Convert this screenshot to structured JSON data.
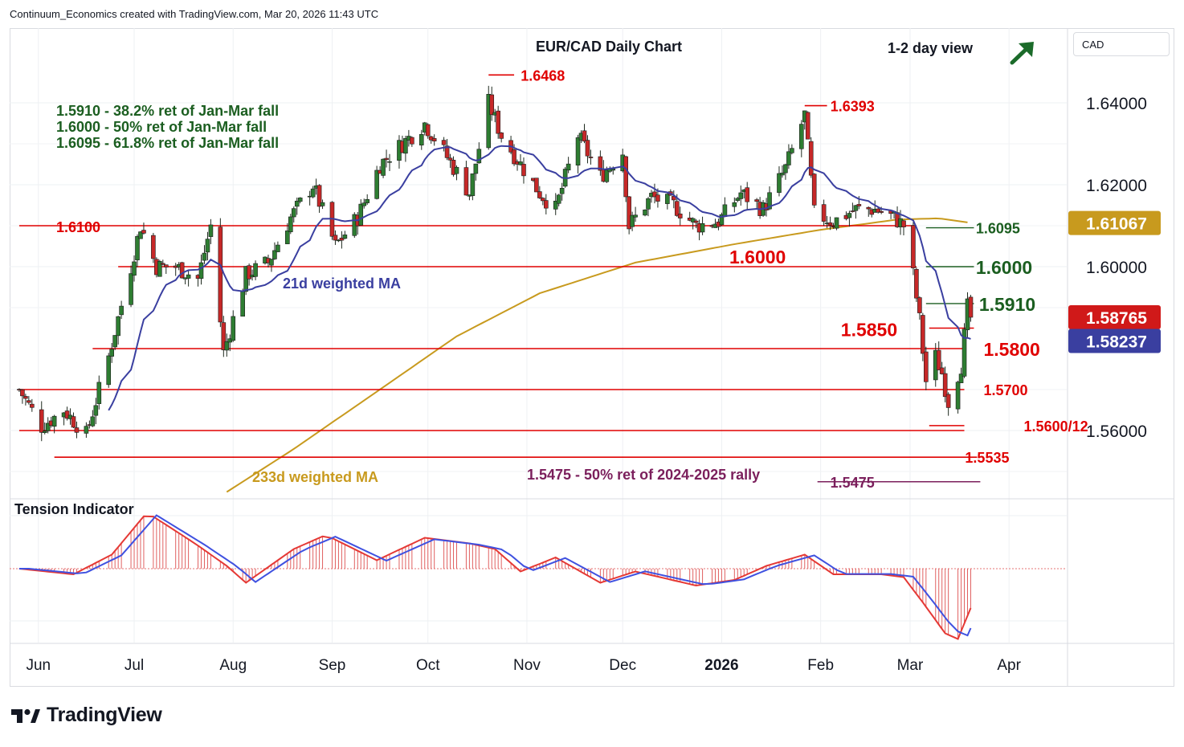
{
  "header": {
    "text": "Continuum_Economics created with TradingView.com, Mar 20, 2026 11:43 UTC"
  },
  "brand": {
    "name": "TradingView"
  },
  "currency": "CAD",
  "colors": {
    "up": "#2e7d32",
    "down": "#c62828",
    "level": "#e00000",
    "ma21": "#3a3fa0",
    "ma233": "#c89a1e",
    "green_text": "#1b5e20",
    "purple": "#7b1f5c",
    "axis_text": "#131722"
  },
  "chart_data": [
    {
      "type": "candlestick",
      "title": "EUR/CAD Daily Chart",
      "view_label": "1-2 day view",
      "view_icon": "arrow-up-right-icon",
      "ylim": [
        1.5445,
        1.6545
      ],
      "y_ticks": [
        "1.64000",
        "1.62000",
        "1.60000",
        "1.56000"
      ],
      "x_ticks": [
        "Jun",
        "Jul",
        "Aug",
        "Sep",
        "Oct",
        "Nov",
        "Dec",
        "2026",
        "Feb",
        "Mar",
        "Apr"
      ],
      "last_price": "1.58765",
      "ma21_value": "1.58237",
      "ma233_value": "1.61067",
      "ohlc_anchors": [
        [
          "2025-05-26",
          1.57
        ],
        [
          "2025-06-02",
          1.561
        ],
        [
          "2025-06-09",
          1.565
        ],
        [
          "2025-06-16",
          1.559
        ],
        [
          "2025-06-23",
          1.578
        ],
        [
          "2025-06-30",
          1.6
        ],
        [
          "2025-07-03",
          1.61
        ],
        [
          "2025-07-08",
          1.6
        ],
        [
          "2025-07-14",
          1.6
        ],
        [
          "2025-07-21",
          1.597
        ],
        [
          "2025-07-25",
          1.61
        ],
        [
          "2025-07-29",
          1.579
        ],
        [
          "2025-08-05",
          1.598
        ],
        [
          "2025-08-12",
          1.601
        ],
        [
          "2025-08-19",
          1.612
        ],
        [
          "2025-08-26",
          1.62
        ],
        [
          "2025-09-02",
          1.605
        ],
        [
          "2025-09-09",
          1.612
        ],
        [
          "2025-09-16",
          1.625
        ],
        [
          "2025-09-23",
          1.63
        ],
        [
          "2025-09-30",
          1.635
        ],
        [
          "2025-10-06",
          1.628
        ],
        [
          "2025-10-14",
          1.618
        ],
        [
          "2025-10-20",
          1.64
        ],
        [
          "2025-10-24",
          1.632
        ],
        [
          "2025-10-30",
          1.625
        ],
        [
          "2025-11-05",
          1.618
        ],
        [
          "2025-11-10",
          1.614
        ],
        [
          "2025-11-17",
          1.632
        ],
        [
          "2025-11-24",
          1.622
        ],
        [
          "2025-12-01",
          1.628
        ],
        [
          "2025-12-03",
          1.61
        ],
        [
          "2025-12-10",
          1.617
        ],
        [
          "2025-12-17",
          1.615
        ],
        [
          "2025-12-24",
          1.61
        ],
        [
          "2025-12-31",
          1.611
        ],
        [
          "2026-01-07",
          1.618
        ],
        [
          "2026-01-14",
          1.614
        ],
        [
          "2026-01-21",
          1.624
        ],
        [
          "2026-01-27",
          1.637
        ],
        [
          "2026-01-30",
          1.613
        ],
        [
          "2026-02-05",
          1.611
        ],
        [
          "2026-02-12",
          1.614
        ],
        [
          "2026-02-18",
          1.614
        ],
        [
          "2026-02-24",
          1.612
        ],
        [
          "2026-02-27",
          1.61
        ],
        [
          "2026-03-02",
          1.598
        ],
        [
          "2026-03-04",
          1.587
        ],
        [
          "2026-03-06",
          1.572
        ],
        [
          "2026-03-09",
          1.578
        ],
        [
          "2026-03-11",
          1.574
        ],
        [
          "2026-03-13",
          1.567
        ],
        [
          "2026-03-17",
          1.576
        ],
        [
          "2026-03-19",
          1.59
        ],
        [
          "2026-03-20",
          1.5877
        ]
      ],
      "ma233_anchors": [
        [
          "2025-07-30",
          1.545
        ],
        [
          "2025-08-20",
          1.5555
        ],
        [
          "2025-09-15",
          1.5695
        ],
        [
          "2025-10-10",
          1.583
        ],
        [
          "2025-11-05",
          1.5935
        ],
        [
          "2025-12-05",
          1.601
        ],
        [
          "2026-01-05",
          1.6055
        ],
        [
          "2026-02-01",
          1.609
        ],
        [
          "2026-02-25",
          1.6115
        ],
        [
          "2026-03-10",
          1.6118
        ],
        [
          "2026-03-20",
          1.6107
        ]
      ],
      "horizontal_levels": [
        {
          "label": "1.6100",
          "value": 1.61,
          "from": "2025-05-26",
          "to": "2026-03-03"
        },
        {
          "label": "1.6000",
          "value": 1.6,
          "from": "2025-06-26",
          "to": "2026-03-03"
        },
        {
          "label": "1.5800",
          "value": 1.58,
          "from": "2025-06-18",
          "to": "2026-03-18"
        },
        {
          "label": "1.5700",
          "value": 1.57,
          "from": "2025-05-26",
          "to": "2026-03-18"
        },
        {
          "label": "",
          "value": 1.56,
          "from": "2025-05-26",
          "to": "2026-03-18"
        },
        {
          "label": "1.5535",
          "value": 1.5535,
          "from": "2025-06-06",
          "to": "2026-03-22"
        }
      ],
      "level_labels": [
        {
          "text": "1.6468",
          "value": 1.6468,
          "date": "2025-10-21"
        },
        {
          "text": "1.6393",
          "value": 1.6393,
          "date": "2026-01-27"
        },
        {
          "text": "1.6095",
          "value": 1.6095,
          "date": "2026-03-06"
        },
        {
          "text": "1.6000",
          "value": 1.6,
          "date": "2026-03-06"
        },
        {
          "text": "1.5910",
          "value": 1.591,
          "date": "2026-03-06"
        },
        {
          "text": "1.5850",
          "value": 1.585,
          "date": "2026-03-07"
        },
        {
          "text": "1.5800",
          "value": 1.58,
          "date": "2026-03-19"
        },
        {
          "text": "1.5700",
          "value": 1.57,
          "date": "2026-03-19"
        },
        {
          "text": "1.5600/12",
          "value": 1.5612,
          "date": "2026-03-17"
        },
        {
          "text": "1.5535",
          "value": 1.5535,
          "date": "2026-03-22"
        },
        {
          "text": "1.5475",
          "value": 1.5475,
          "date": "2026-01-31"
        }
      ],
      "annotations": {
        "fib_lines": [
          "1.5910 - 38.2% ret of Jan-Mar fall",
          "1.6000 - 50% ret of Jan-Mar fall",
          "1.6095 - 61.8% ret of Jan-Mar fall"
        ],
        "ma21_label": "21d weighted MA",
        "ma233_label": "233d weighted MA",
        "rally_note": "1.5475 - 50% ret of 2024-2025 rally",
        "level_1_6000": "1.6000",
        "level_1_5850": "1.5850",
        "level_1_6100": "1.6100"
      }
    },
    {
      "type": "histogram",
      "title": "Tension Indicator",
      "oscillator_anchors": [
        [
          "2025-05-26",
          0.0
        ],
        [
          "2025-06-12",
          -0.1
        ],
        [
          "2025-06-24",
          0.25
        ],
        [
          "2025-07-05",
          1.0
        ],
        [
          "2025-07-20",
          0.45
        ],
        [
          "2025-07-30",
          0.05
        ],
        [
          "2025-08-05",
          -0.25
        ],
        [
          "2025-08-20",
          0.35
        ],
        [
          "2025-08-30",
          0.6
        ],
        [
          "2025-09-15",
          0.15
        ],
        [
          "2025-09-30",
          0.55
        ],
        [
          "2025-10-14",
          0.45
        ],
        [
          "2025-10-22",
          0.35
        ],
        [
          "2025-10-30",
          -0.05
        ],
        [
          "2025-11-10",
          0.2
        ],
        [
          "2025-11-24",
          -0.25
        ],
        [
          "2025-12-05",
          -0.05
        ],
        [
          "2025-12-24",
          -0.3
        ],
        [
          "2026-01-05",
          -0.2
        ],
        [
          "2026-01-15",
          0.05
        ],
        [
          "2026-01-27",
          0.25
        ],
        [
          "2026-02-05",
          -0.1
        ],
        [
          "2026-02-20",
          -0.1
        ],
        [
          "2026-02-27",
          -0.15
        ],
        [
          "2026-03-05",
          -0.6
        ],
        [
          "2026-03-12",
          -1.15
        ],
        [
          "2026-03-16",
          -1.25
        ],
        [
          "2026-03-20",
          -0.7
        ]
      ]
    }
  ]
}
